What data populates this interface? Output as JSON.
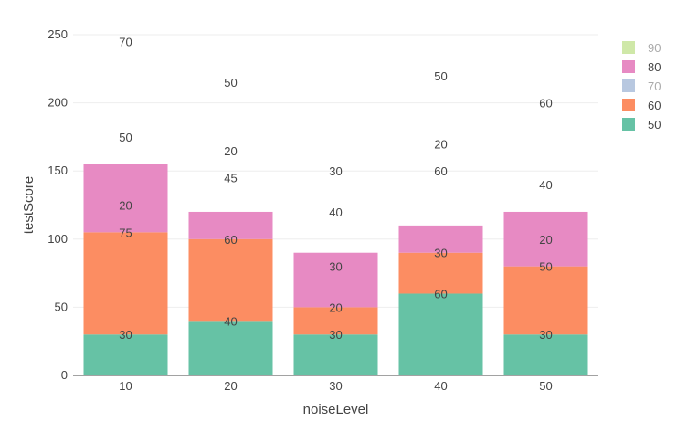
{
  "chart_data": {
    "type": "bar",
    "stacked": true,
    "xlabel": "noiseLevel",
    "ylabel": "testScore",
    "categories": [
      "10",
      "20",
      "30",
      "40",
      "50"
    ],
    "ylim": [
      0,
      250
    ],
    "yticks": [
      0,
      50,
      100,
      150,
      200,
      250
    ],
    "grid": true,
    "legend_position": "right",
    "series": [
      {
        "name": "50",
        "color": "#66c2a5",
        "values": [
          30,
          40,
          30,
          60,
          30
        ]
      },
      {
        "name": "60",
        "color": "#fc8d62",
        "values": [
          75,
          60,
          20,
          30,
          50
        ]
      },
      {
        "name": "70",
        "color": "#b8c8e0",
        "values": [
          0,
          0,
          0,
          0,
          0
        ],
        "legend_dim": true
      },
      {
        "name": "80",
        "color": "#e78ac3",
        "values": [
          50,
          20,
          40,
          20,
          40
        ]
      },
      {
        "name": "90",
        "color": "#cfe8a8",
        "values": [
          0,
          0,
          0,
          0,
          0
        ],
        "legend_dim": true
      }
    ],
    "annotations": [
      {
        "x": "10",
        "y": 30,
        "text": "30"
      },
      {
        "x": "10",
        "y": 105,
        "text": "75"
      },
      {
        "x": "10",
        "y": 125,
        "text": "20"
      },
      {
        "x": "10",
        "y": 175,
        "text": "50"
      },
      {
        "x": "10",
        "y": 245,
        "text": "70"
      },
      {
        "x": "20",
        "y": 40,
        "text": "40"
      },
      {
        "x": "20",
        "y": 100,
        "text": "60"
      },
      {
        "x": "20",
        "y": 145,
        "text": "45"
      },
      {
        "x": "20",
        "y": 165,
        "text": "20"
      },
      {
        "x": "20",
        "y": 215,
        "text": "50"
      },
      {
        "x": "30",
        "y": 30,
        "text": "30"
      },
      {
        "x": "30",
        "y": 50,
        "text": "20"
      },
      {
        "x": "30",
        "y": 80,
        "text": "30"
      },
      {
        "x": "30",
        "y": 120,
        "text": "40"
      },
      {
        "x": "30",
        "y": 150,
        "text": "30"
      },
      {
        "x": "40",
        "y": 60,
        "text": "60"
      },
      {
        "x": "40",
        "y": 90,
        "text": "30"
      },
      {
        "x": "40",
        "y": 150,
        "text": "60"
      },
      {
        "x": "40",
        "y": 170,
        "text": "20"
      },
      {
        "x": "40",
        "y": 220,
        "text": "50"
      },
      {
        "x": "50",
        "y": 30,
        "text": "30"
      },
      {
        "x": "50",
        "y": 80,
        "text": "50"
      },
      {
        "x": "50",
        "y": 100,
        "text": "20"
      },
      {
        "x": "50",
        "y": 140,
        "text": "40"
      },
      {
        "x": "50",
        "y": 200,
        "text": "60"
      }
    ],
    "legend_order": [
      "90",
      "80",
      "70",
      "60",
      "50"
    ]
  }
}
